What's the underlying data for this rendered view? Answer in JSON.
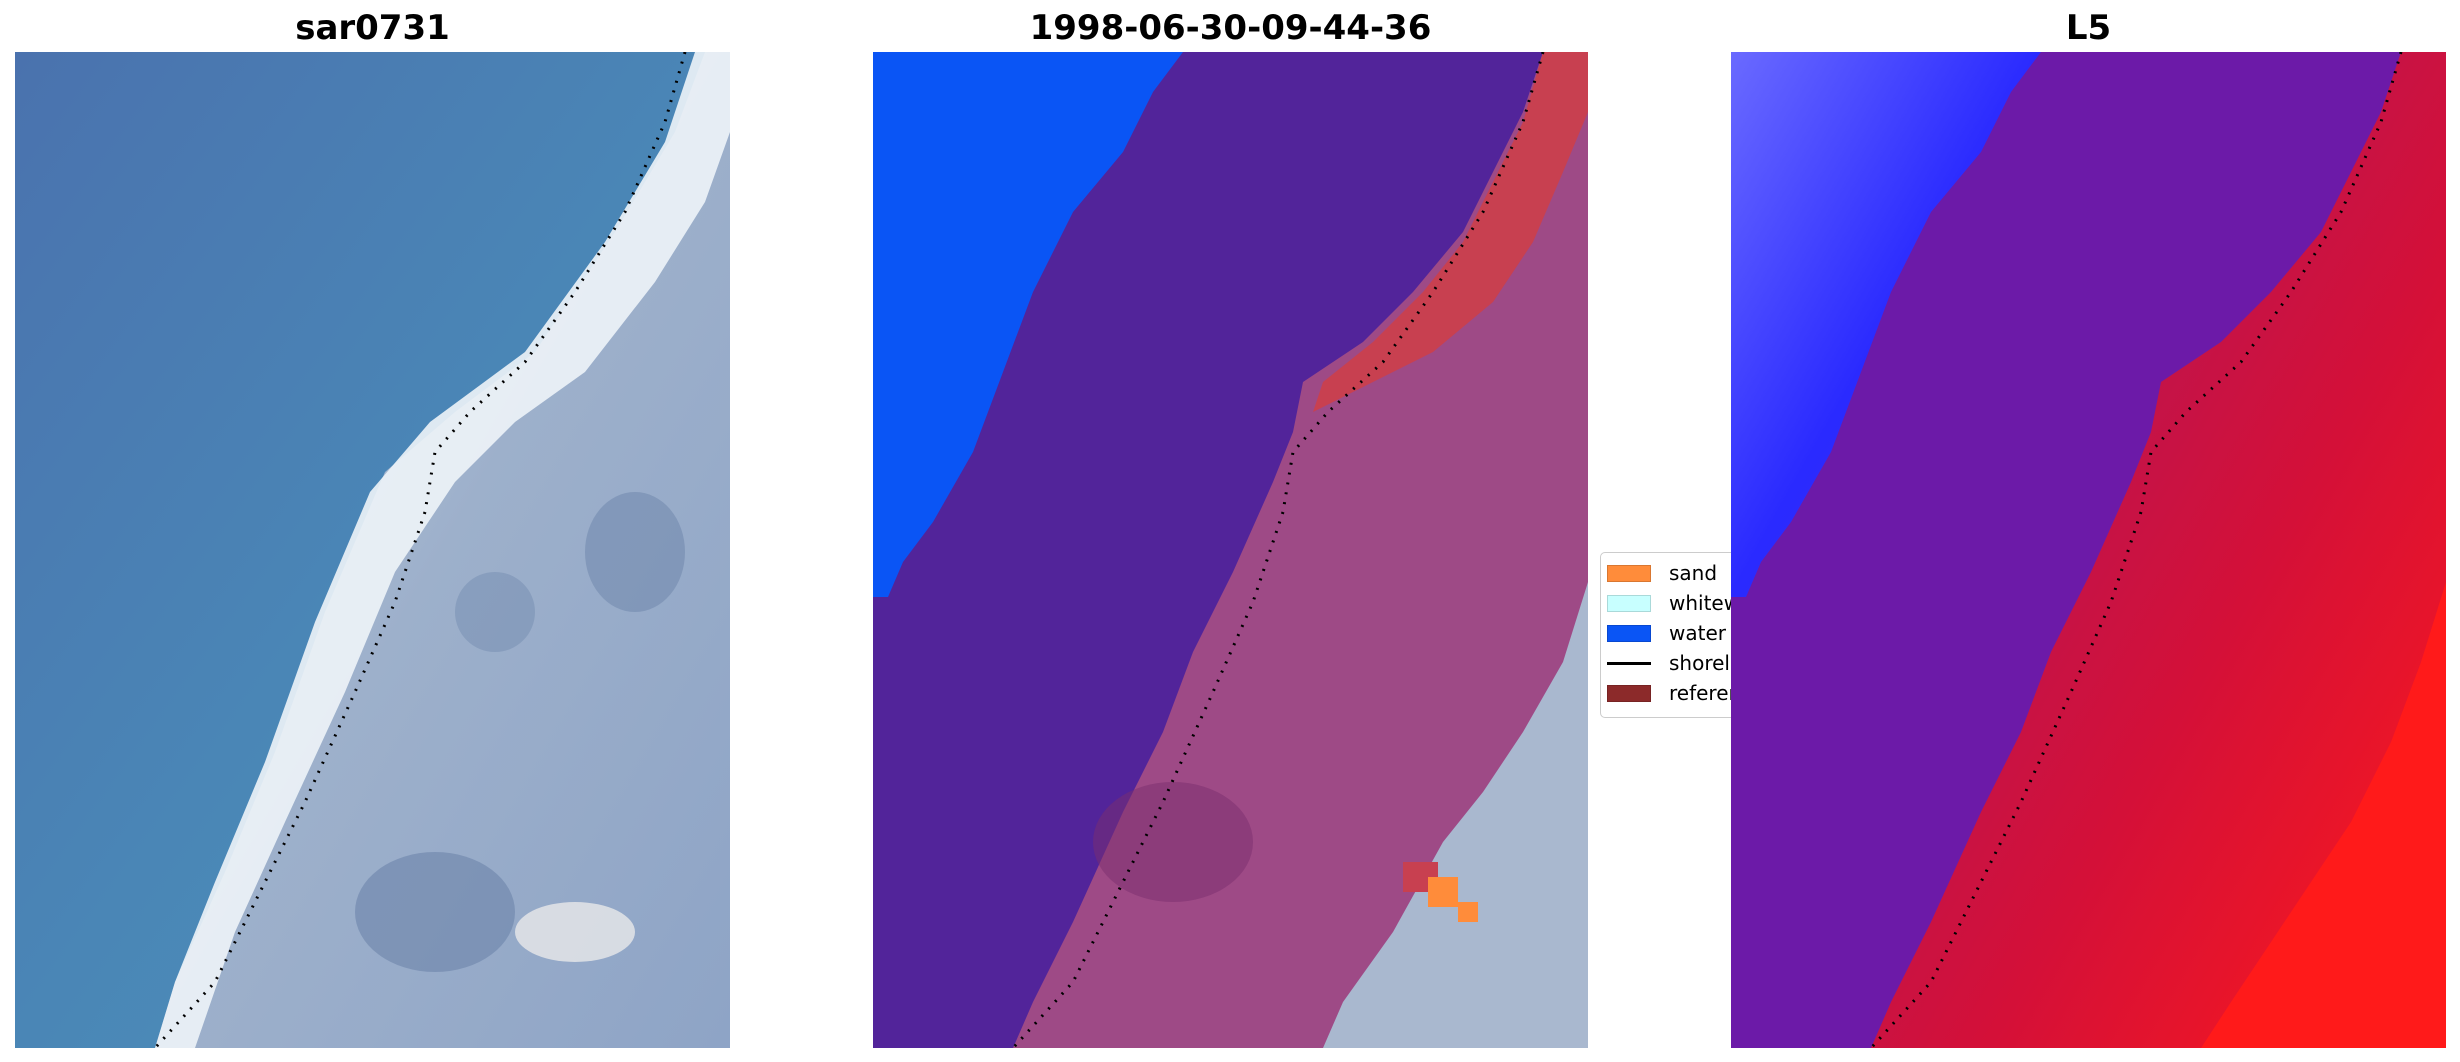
{
  "panels": [
    {
      "title": "sar0731"
    },
    {
      "title": "1998-06-30-09-44-36"
    },
    {
      "title": "L5"
    }
  ],
  "legend": {
    "items": [
      {
        "label": "sand",
        "color": "#ff8c3a",
        "kind": "patch"
      },
      {
        "label": "whitew",
        "color": "#c8ffff",
        "kind": "patch"
      },
      {
        "label": "water",
        "color": "#0a55f5",
        "kind": "patch"
      },
      {
        "label": "shorel",
        "color": "#000000",
        "kind": "line"
      },
      {
        "label": "referer",
        "color": "#8c2a2a",
        "kind": "patch"
      }
    ]
  },
  "colors": {
    "ocean": "#4a80b0",
    "sand_strip": "#eef4f8",
    "land": "#8fa4c4",
    "class_water": "#0a55f5",
    "class_sea": "#52249a",
    "class_land": "#9e4a86",
    "class_reference": "#c84050",
    "class_sand": "#ff8c3a",
    "class_white_land": "#a9b8cf",
    "index_low": "#4b3cff",
    "index_mid": "#6c1aa8",
    "index_high": "#d81030",
    "index_peak": "#ff1a1a"
  }
}
